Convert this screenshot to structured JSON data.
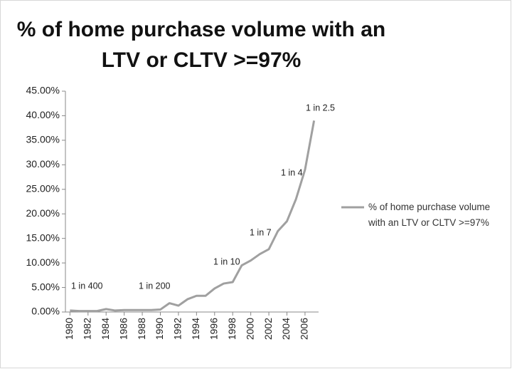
{
  "chart_data": {
    "type": "line",
    "title": "% of home purchase volume with an LTV or CLTV >=97%",
    "x": [
      1980,
      1981,
      1982,
      1983,
      1984,
      1985,
      1986,
      1987,
      1988,
      1989,
      1990,
      1991,
      1992,
      1993,
      1994,
      1995,
      1996,
      1997,
      1998,
      1999,
      2000,
      2001,
      2002,
      2003,
      2004,
      2005,
      2006,
      2007
    ],
    "series": [
      {
        "name": "% of home purchase volume with an LTV or CLTV >=97%",
        "color": "#a0a0a0",
        "values": [
          0.3,
          0.2,
          0.2,
          0.2,
          0.6,
          0.3,
          0.4,
          0.4,
          0.4,
          0.4,
          0.5,
          1.8,
          1.3,
          2.6,
          3.3,
          3.3,
          4.8,
          5.8,
          6.1,
          9.5,
          10.5,
          11.8,
          12.8,
          16.5,
          18.5,
          23,
          29,
          39
        ]
      }
    ],
    "xlim": [
      1979.5,
      2007.5
    ],
    "xticks": [
      1980,
      1982,
      1984,
      1986,
      1988,
      1990,
      1992,
      1994,
      1996,
      1998,
      2000,
      2002,
      2004,
      2006
    ],
    "ylim": [
      0,
      45
    ],
    "yticks": [
      {
        "value": 0,
        "label": "0.00%"
      },
      {
        "value": 5,
        "label": "5.00%"
      },
      {
        "value": 10,
        "label": "10.00%"
      },
      {
        "value": 15,
        "label": "15.00%"
      },
      {
        "value": 20,
        "label": "20.00%"
      },
      {
        "value": 25,
        "label": "25.00%"
      },
      {
        "value": 30,
        "label": "30.00%"
      },
      {
        "value": 35,
        "label": "35.00%"
      },
      {
        "value": 40,
        "label": "40.00%"
      },
      {
        "value": 45,
        "label": "45.00%"
      }
    ],
    "annotations": [
      "1 in 400",
      "1 in 200",
      "1 in 10",
      "1 in 7",
      "1 in 4",
      "1 in 2.5"
    ],
    "grid": false,
    "legend": "right"
  }
}
